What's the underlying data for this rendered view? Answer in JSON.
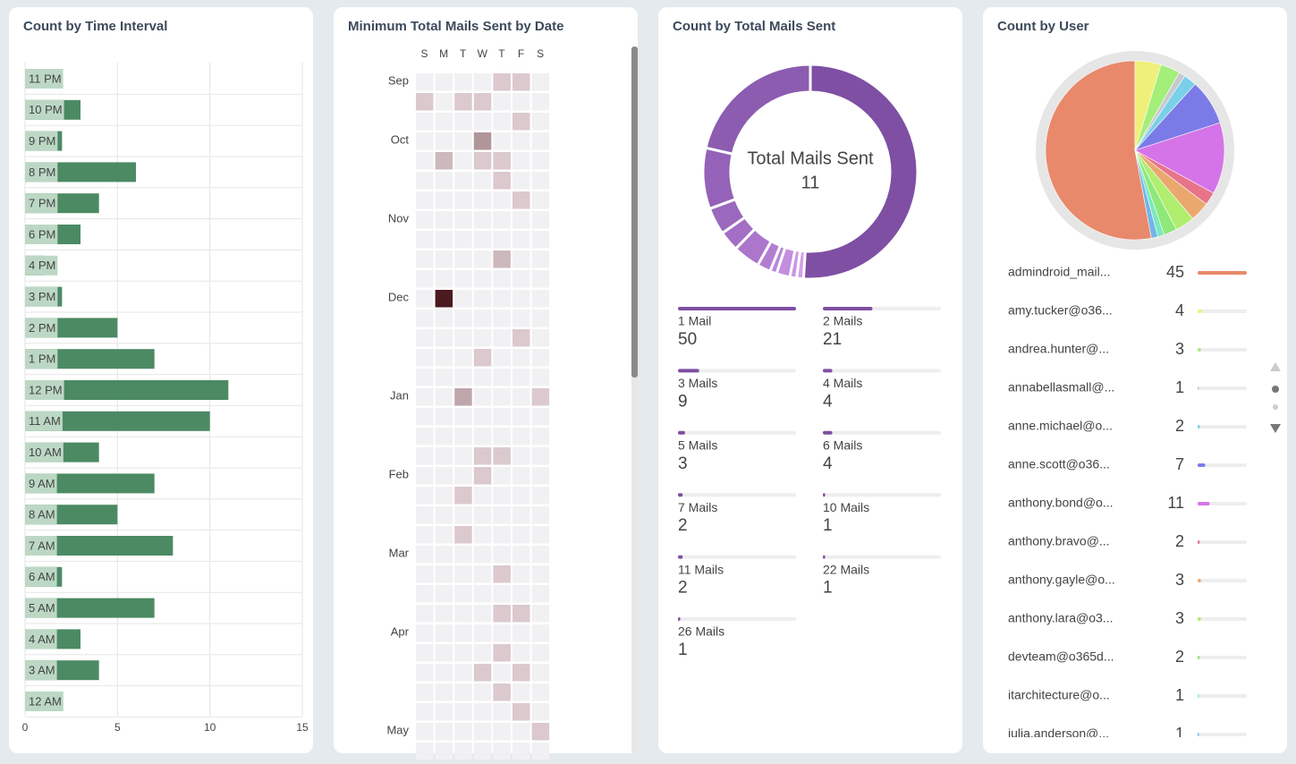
{
  "chart_data": [
    {
      "type": "hbar",
      "title": "Count by Time Interval",
      "categories": [
        "11 PM",
        "10 PM",
        "9 PM",
        "8 PM",
        "7 PM",
        "6 PM",
        "4 PM",
        "3 PM",
        "2 PM",
        "1 PM",
        "12 PM",
        "11 AM",
        "10 AM",
        "9 AM",
        "8 AM",
        "7 AM",
        "6 AM",
        "5 AM",
        "4 AM",
        "3 AM",
        "12 AM"
      ],
      "values": [
        2,
        3,
        2,
        6,
        4,
        3,
        1,
        2,
        5,
        7,
        11,
        10,
        4,
        7,
        5,
        8,
        2,
        7,
        3,
        4,
        2
      ],
      "color": "#4c8a64",
      "label_color": "#bcd8c5",
      "xlim": [
        0,
        15
      ],
      "xticks": [
        0,
        5,
        10,
        15
      ],
      "grid": true
    },
    {
      "type": "heatmap",
      "title": "Minimum Total Mails Sent by Date",
      "weekdays": [
        "S",
        "M",
        "T",
        "W",
        "T",
        "F",
        "S"
      ],
      "months": [
        {
          "label": "Sep",
          "week": 0
        },
        {
          "label": "Oct",
          "week": 3
        },
        {
          "label": "Nov",
          "week": 7
        },
        {
          "label": "Dec",
          "week": 11
        },
        {
          "label": "Jan",
          "week": 16
        },
        {
          "label": "Feb",
          "week": 20
        },
        {
          "label": "Mar",
          "week": 24
        },
        {
          "label": "Apr",
          "week": 28
        },
        {
          "label": "May",
          "week": 33
        }
      ],
      "color_range": [
        "#eadbdf",
        "#4a1a1f"
      ],
      "empty_color": "#f1f1f3",
      "weeks": [
        [
          null,
          null,
          null,
          null,
          1,
          1,
          null
        ],
        [
          1,
          null,
          1,
          1,
          null,
          null,
          null
        ],
        [
          null,
          null,
          null,
          null,
          null,
          1,
          null
        ],
        [
          null,
          null,
          null,
          4,
          null,
          null,
          null
        ],
        [
          null,
          2,
          null,
          1,
          1,
          null,
          null
        ],
        [
          null,
          null,
          null,
          null,
          1,
          null,
          null
        ],
        [
          null,
          null,
          null,
          null,
          null,
          1,
          null
        ],
        [
          null,
          null,
          null,
          null,
          null,
          null,
          null
        ],
        [
          null,
          null,
          null,
          null,
          null,
          null,
          null
        ],
        [
          null,
          null,
          null,
          null,
          2,
          null,
          null
        ],
        [
          null,
          null,
          null,
          null,
          null,
          null,
          null
        ],
        [
          null,
          11,
          null,
          null,
          null,
          null,
          null
        ],
        [
          null,
          null,
          null,
          null,
          null,
          null,
          null
        ],
        [
          null,
          null,
          null,
          null,
          null,
          1,
          null
        ],
        [
          null,
          null,
          null,
          1,
          null,
          null,
          null
        ],
        [
          null,
          null,
          null,
          null,
          null,
          null,
          null
        ],
        [
          null,
          null,
          3,
          null,
          null,
          null,
          1
        ],
        [
          null,
          null,
          null,
          null,
          null,
          null,
          null
        ],
        [
          null,
          null,
          null,
          null,
          null,
          null,
          null
        ],
        [
          null,
          null,
          null,
          1,
          1,
          null,
          null
        ],
        [
          null,
          null,
          null,
          1,
          null,
          null,
          null
        ],
        [
          null,
          null,
          1,
          null,
          null,
          null,
          null
        ],
        [
          null,
          null,
          null,
          null,
          null,
          null,
          null
        ],
        [
          null,
          null,
          1,
          null,
          null,
          null,
          null
        ],
        [
          null,
          null,
          null,
          null,
          null,
          null,
          null
        ],
        [
          null,
          null,
          null,
          null,
          1,
          null,
          null
        ],
        [
          null,
          null,
          null,
          null,
          null,
          null,
          null
        ],
        [
          null,
          null,
          null,
          null,
          1,
          1,
          null
        ],
        [
          null,
          null,
          null,
          null,
          null,
          null,
          null
        ],
        [
          null,
          null,
          null,
          null,
          1,
          null,
          null
        ],
        [
          null,
          null,
          null,
          1,
          null,
          1,
          null
        ],
        [
          null,
          null,
          null,
          null,
          1,
          null,
          null
        ],
        [
          null,
          null,
          null,
          null,
          null,
          1,
          null
        ],
        [
          null,
          null,
          null,
          null,
          null,
          null,
          1
        ],
        [
          null,
          null,
          null,
          null,
          null,
          null,
          null
        ]
      ]
    },
    {
      "type": "donut",
      "title": "Count by Total Mails Sent",
      "center_label": "Total Mails Sent",
      "center_value": 11,
      "categories": [
        "1 Mail",
        "2 Mails",
        "3 Mails",
        "4 Mails",
        "5 Mails",
        "6 Mails",
        "7 Mails",
        "10 Mails",
        "11 Mails",
        "22 Mails",
        "26 Mails"
      ],
      "values": [
        50,
        21,
        9,
        4,
        3,
        4,
        2,
        1,
        2,
        1,
        1
      ],
      "colors": [
        "#7e4fa3",
        "#8c5cb0",
        "#9462b8",
        "#9a68bd",
        "#a36fc4",
        "#ab76cb",
        "#b37ed2",
        "#bb86d8",
        "#c38edd",
        "#cb97e2",
        "#d3a0e7"
      ]
    },
    {
      "type": "pie",
      "title": "Count by User",
      "categories": [
        "admindroid_mail...",
        "amy.tucker@o36...",
        "andrea.hunter@...",
        "annabellasmall@...",
        "anne.michael@o...",
        "anne.scott@o36...",
        "anthony.bond@o...",
        "anthony.bravo@...",
        "anthony.gayle@o...",
        "anthony.lara@o3...",
        "devteam@o365d...",
        "itarchitecture@o...",
        "julia.anderson@..."
      ],
      "values": [
        45,
        4,
        3,
        1,
        2,
        7,
        11,
        2,
        3,
        3,
        2,
        1,
        1
      ],
      "colors": [
        "#e8896b",
        "#eef07a",
        "#a4ee7a",
        "#c8c8d0",
        "#7ad0e8",
        "#7b7be8",
        "#d574e8",
        "#e8748a",
        "#eba86e",
        "#b0ee70",
        "#8ee87a",
        "#7ae8c0",
        "#74b4e8"
      ]
    }
  ]
}
